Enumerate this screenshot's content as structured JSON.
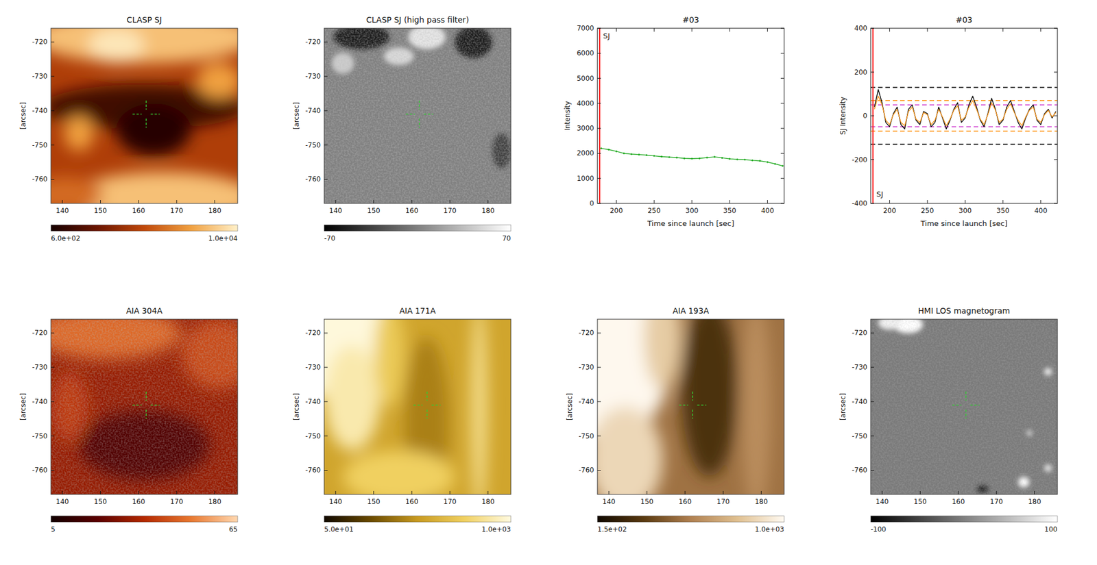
{
  "chart_data": [
    {
      "type": "image",
      "title": "CLASP SJ",
      "y_label": "[arcsec]",
      "xlim": [
        137,
        186
      ],
      "ylim": [
        -767,
        -716
      ],
      "xticks": [
        140,
        150,
        160,
        170,
        180
      ],
      "yticks": [
        -720,
        -730,
        -740,
        -750,
        -760
      ],
      "crosshair": {
        "x": 162,
        "y": -741
      },
      "colorbar": {
        "range": [
          600,
          10000
        ],
        "ticks": [
          {
            "value": 600,
            "label": "6.0e+02"
          },
          {
            "value": 10000,
            "label": "1.0e+04"
          }
        ]
      }
    },
    {
      "type": "image",
      "title": "CLASP SJ (high pass filter)",
      "y_label": "[arcsec]",
      "xlim": [
        137,
        186
      ],
      "ylim": [
        -767,
        -716
      ],
      "xticks": [
        140,
        150,
        160,
        170,
        180
      ],
      "yticks": [
        -720,
        -730,
        -740,
        -750,
        -760
      ],
      "crosshair": {
        "x": 162,
        "y": -741
      },
      "colorbar": {
        "range": [
          -70,
          70
        ],
        "ticks": [
          -70,
          70
        ]
      }
    },
    {
      "type": "line",
      "title": "#03",
      "x_label": "Time since launch [sec]",
      "y_label": "Intensity",
      "xlim": [
        175,
        422
      ],
      "ylim": [
        0,
        7000
      ],
      "xticks": [
        200,
        250,
        300,
        350,
        400
      ],
      "yticks": [
        0,
        1000,
        2000,
        3000,
        4000,
        5000,
        6000,
        7000
      ],
      "x": [
        180,
        190,
        200,
        210,
        220,
        230,
        240,
        250,
        260,
        270,
        280,
        290,
        300,
        310,
        320,
        330,
        340,
        350,
        360,
        370,
        380,
        390,
        400,
        410,
        420
      ],
      "series": [
        {
          "color": "#22aa22",
          "values": [
            2200,
            2150,
            2080,
            2000,
            1970,
            1950,
            1930,
            1900,
            1870,
            1850,
            1830,
            1800,
            1790,
            1800,
            1830,
            1860,
            1820,
            1780,
            1760,
            1750,
            1720,
            1700,
            1650,
            1580,
            1500
          ]
        }
      ],
      "vline": {
        "x": 178,
        "color": "#ff2020",
        "label": "SJ"
      }
    },
    {
      "type": "line",
      "title": "#03",
      "x_label": "Time since launch [sec]",
      "y_label": "SJ Intensity",
      "xlim": [
        175,
        422
      ],
      "ylim": [
        -400,
        400
      ],
      "xticks": [
        200,
        250,
        300,
        350,
        400
      ],
      "yticks": [
        -400,
        -200,
        0,
        200,
        400
      ],
      "x": [
        180,
        185,
        190,
        195,
        200,
        205,
        210,
        215,
        220,
        225,
        230,
        235,
        240,
        245,
        250,
        255,
        260,
        265,
        270,
        275,
        280,
        285,
        290,
        295,
        300,
        305,
        310,
        315,
        320,
        325,
        330,
        335,
        340,
        345,
        350,
        355,
        360,
        365,
        370,
        375,
        380,
        385,
        390,
        395,
        400,
        405,
        410,
        415,
        420
      ],
      "series": [
        {
          "color": "#000000",
          "values": [
            40,
            120,
            60,
            -30,
            -50,
            10,
            40,
            -40,
            -60,
            30,
            50,
            -20,
            -40,
            20,
            10,
            -50,
            -30,
            40,
            -10,
            -60,
            -20,
            30,
            60,
            -30,
            -10,
            50,
            90,
            40,
            -20,
            -50,
            10,
            80,
            30,
            -40,
            -20,
            40,
            70,
            20,
            -30,
            -60,
            -10,
            30,
            50,
            -20,
            -40,
            10,
            30,
            -10,
            20
          ]
        },
        {
          "color": "#ff9a20",
          "values": [
            30,
            90,
            50,
            -20,
            -40,
            5,
            30,
            -30,
            -45,
            20,
            40,
            -15,
            -30,
            15,
            5,
            -40,
            -20,
            30,
            -5,
            -45,
            -15,
            25,
            45,
            -20,
            -5,
            40,
            70,
            30,
            -15,
            -40,
            5,
            60,
            25,
            -30,
            -15,
            30,
            55,
            15,
            -20,
            -45,
            -5,
            25,
            40,
            -15,
            -30,
            5,
            25,
            -5,
            15
          ]
        }
      ],
      "hlines": [
        {
          "y": 130,
          "color": "#000000",
          "line_style": "dashed"
        },
        {
          "y": -130,
          "color": "#000000",
          "line_style": "dashed"
        },
        {
          "y": 70,
          "color": "#ff9a20",
          "line_style": "dashed"
        },
        {
          "y": -70,
          "color": "#ff9a20",
          "line_style": "dashed"
        },
        {
          "y": 50,
          "color": "#d040d0",
          "line_style": "dashed"
        },
        {
          "y": -50,
          "color": "#d040d0",
          "line_style": "dashed"
        }
      ],
      "vline": {
        "x": 178,
        "color": "#ff2020",
        "label": "SJ"
      }
    },
    {
      "type": "image",
      "title": "AIA 304A",
      "y_label": "[arcsec]",
      "xlim": [
        137,
        186
      ],
      "ylim": [
        -767,
        -716
      ],
      "xticks": [
        140,
        150,
        160,
        170,
        180
      ],
      "yticks": [
        -720,
        -730,
        -740,
        -750,
        -760
      ],
      "crosshair": {
        "x": 162,
        "y": -741
      },
      "colorbar": {
        "range": [
          5,
          65
        ],
        "ticks": [
          5,
          65
        ]
      }
    },
    {
      "type": "image",
      "title": "AIA 171A",
      "y_label": "[arcsec]",
      "xlim": [
        137,
        186
      ],
      "ylim": [
        -767,
        -716
      ],
      "xticks": [
        140,
        150,
        160,
        170,
        180
      ],
      "yticks": [
        -720,
        -730,
        -740,
        -750,
        -760
      ],
      "crosshair": {
        "x": 164,
        "y": -741
      },
      "colorbar": {
        "range": [
          50,
          1000
        ],
        "ticks": [
          {
            "value": 50,
            "label": "5.0e+01"
          },
          {
            "value": 1000,
            "label": "1.0e+03"
          }
        ]
      }
    },
    {
      "type": "image",
      "title": "AIA 193A",
      "y_label": "[arcsec]",
      "xlim": [
        137,
        186
      ],
      "ylim": [
        -767,
        -716
      ],
      "xticks": [
        140,
        150,
        160,
        170,
        180
      ],
      "yticks": [
        -720,
        -730,
        -740,
        -750,
        -760
      ],
      "crosshair": {
        "x": 162,
        "y": -741
      },
      "colorbar": {
        "range": [
          150,
          1000
        ],
        "ticks": [
          {
            "value": 150,
            "label": "1.5e+02"
          },
          {
            "value": 1000,
            "label": "1.0e+03"
          }
        ]
      }
    },
    {
      "type": "image",
      "title": "HMI LOS magnetogram",
      "y_label": "[arcsec]",
      "xlim": [
        137,
        186
      ],
      "ylim": [
        -767,
        -716
      ],
      "xticks": [
        140,
        150,
        160,
        170,
        180
      ],
      "yticks": [
        -720,
        -730,
        -740,
        -750,
        -760
      ],
      "crosshair": {
        "x": 162,
        "y": -741
      },
      "colorbar": {
        "range": [
          -100,
          100
        ],
        "ticks": [
          -100,
          100
        ]
      }
    }
  ]
}
